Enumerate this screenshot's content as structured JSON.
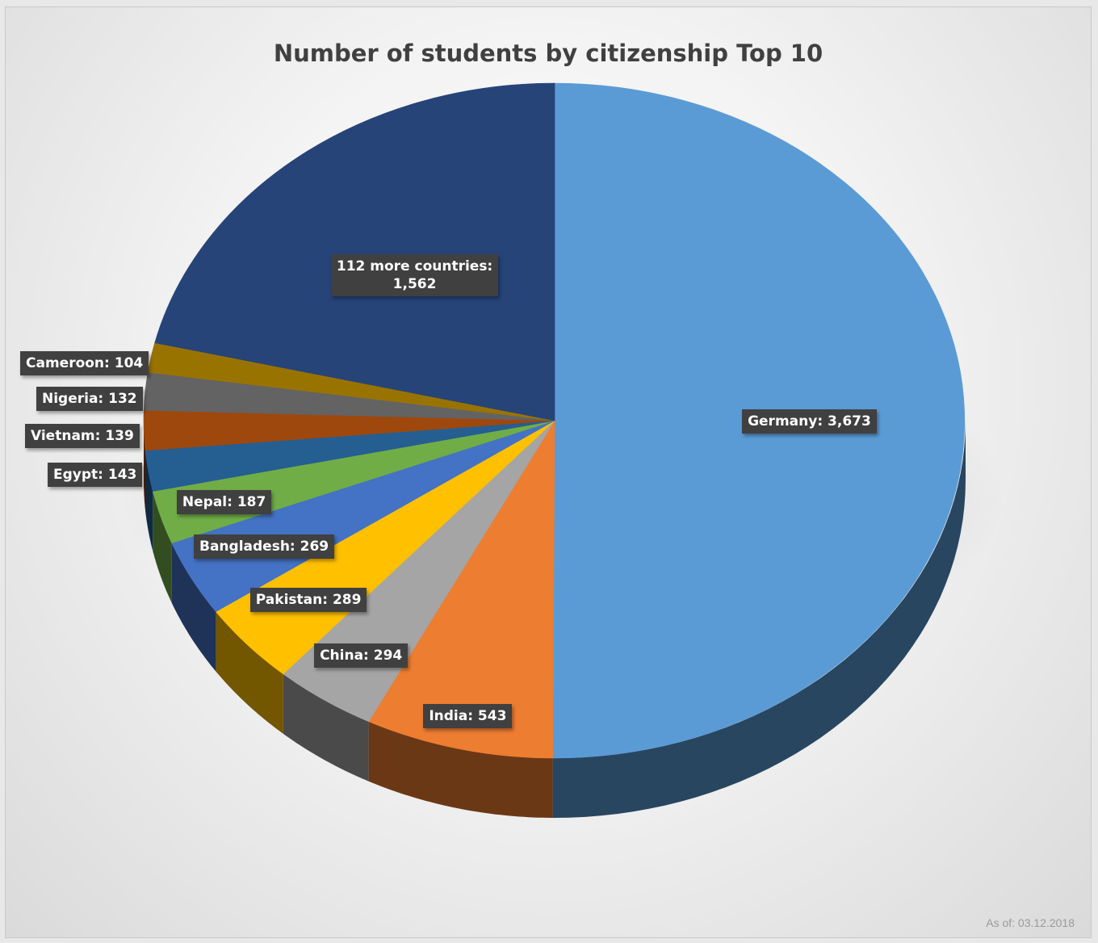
{
  "title": "Number of students by citizenship Top 10",
  "footer_note": "As of: 03.12.2018",
  "chart_data": {
    "type": "pie",
    "title": "Number of students by citizenship Top 10",
    "style": "3d-pie",
    "categories": [
      "Germany",
      "India",
      "China",
      "Pakistan",
      "Bangladesh",
      "Nepal",
      "Egypt",
      "Vietnam",
      "Nigeria",
      "Cameroon",
      "112 more countries"
    ],
    "values": [
      3673,
      543,
      294,
      289,
      269,
      187,
      143,
      139,
      132,
      104,
      1562
    ],
    "labels": [
      [
        "Germany: 3,673"
      ],
      [
        "India: 543"
      ],
      [
        "China: 294"
      ],
      [
        "Pakistan: 289"
      ],
      [
        "Bangladesh: 269"
      ],
      [
        "Nepal: 187"
      ],
      [
        "Egypt: 143"
      ],
      [
        "Vietnam: 139"
      ],
      [
        "Nigeria: 132"
      ],
      [
        "Cameroon: 104"
      ],
      [
        "112 more countries:",
        "1,562"
      ]
    ],
    "colors": [
      "#5b9bd5",
      "#ed7d31",
      "#a5a5a5",
      "#ffc000",
      "#4472c4",
      "#70ad47",
      "#255e91",
      "#9e480e",
      "#636363",
      "#997300",
      "#264478"
    ],
    "label_placement": "data labels on slices, small slices labeled outside on the left"
  }
}
